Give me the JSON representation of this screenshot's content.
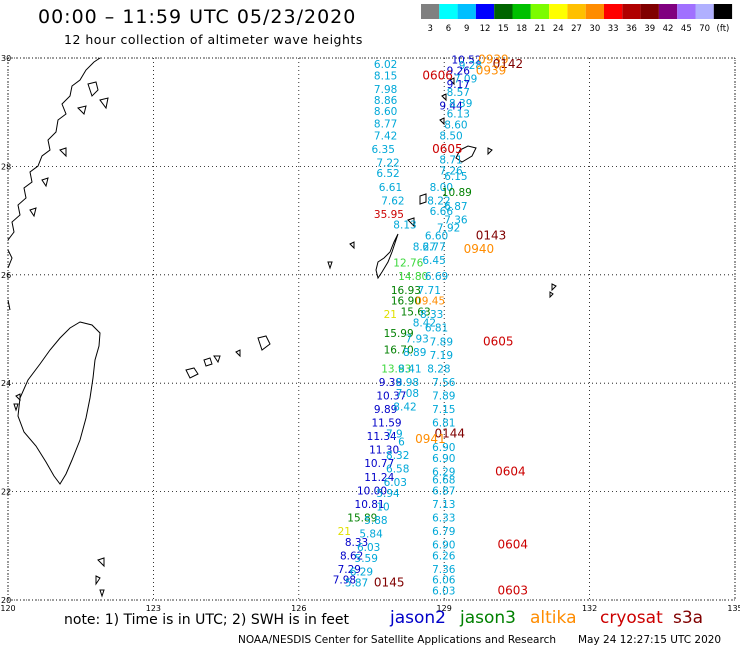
{
  "header": {
    "title": "00:00 – 11:59 UTC 05/23/2020",
    "subtitle": "12 hour collection of altimeter wave heights"
  },
  "colorbar": {
    "colors": [
      "#808080",
      "#00ffff",
      "#00bfff",
      "#0000ff",
      "#006400",
      "#00c000",
      "#7cfc00",
      "#ffff00",
      "#ffc000",
      "#ff8c00",
      "#ff0000",
      "#b00000",
      "#800000",
      "#800080",
      "#a070ff",
      "#b0b0ff",
      "#000000"
    ],
    "labels": [
      "3",
      "6",
      "9",
      "12",
      "15",
      "18",
      "21",
      "24",
      "27",
      "30",
      "33",
      "36",
      "39",
      "42",
      "45",
      "70",
      "(ft)"
    ]
  },
  "axes": {
    "lon_ticks": [
      "120",
      "123",
      "126",
      "129",
      "132",
      "135"
    ],
    "lat_ticks": [
      "30",
      "28",
      "26",
      "24",
      "22",
      "20"
    ]
  },
  "colors": {
    "jason2": "#0000c8",
    "jason3": "#008000",
    "altika": "#ff8c00",
    "cryosat": "#cc0000",
    "s3a": "#800000",
    "cyan": "#00a8d8",
    "lime": "#3cd83c",
    "yellow": "#e0e000"
  },
  "observations": [
    {
      "t": "10.52",
      "lon": 129.15,
      "lat": 29.9,
      "c": "jason2"
    },
    {
      "t": "0939",
      "lon": 129.7,
      "lat": 29.9,
      "c": "altika"
    },
    {
      "t": "0142",
      "lon": 130.0,
      "lat": 29.82,
      "c": "s3a"
    },
    {
      "t": "6.02",
      "lon": 127.55,
      "lat": 29.82,
      "c": "cyan"
    },
    {
      "t": "9.28",
      "lon": 129.3,
      "lat": 29.8,
      "c": "cyan"
    },
    {
      "t": "9.26",
      "lon": 129.05,
      "lat": 29.7,
      "c": "jason2"
    },
    {
      "t": "0939",
      "lon": 129.65,
      "lat": 29.7,
      "c": "altika"
    },
    {
      "t": "8.15",
      "lon": 127.55,
      "lat": 29.6,
      "c": "cyan"
    },
    {
      "t": "0606",
      "lon": 128.55,
      "lat": 29.6,
      "c": "cryosat"
    },
    {
      "t": "7.09",
      "lon": 129.2,
      "lat": 29.55,
      "c": "cyan"
    },
    {
      "t": "9.17",
      "lon": 129.05,
      "lat": 29.45,
      "c": "jason2"
    },
    {
      "t": "7.98",
      "lon": 127.55,
      "lat": 29.35,
      "c": "cyan"
    },
    {
      "t": "8.57",
      "lon": 129.05,
      "lat": 29.3,
      "c": "cyan"
    },
    {
      "t": "8.86",
      "lon": 127.55,
      "lat": 29.15,
      "c": "cyan"
    },
    {
      "t": "9.44",
      "lon": 128.9,
      "lat": 29.05,
      "c": "jason2"
    },
    {
      "t": "8.39",
      "lon": 129.1,
      "lat": 29.1,
      "c": "cyan"
    },
    {
      "t": "8.60",
      "lon": 127.55,
      "lat": 28.95,
      "c": "cyan"
    },
    {
      "t": "6.13",
      "lon": 129.05,
      "lat": 28.9,
      "c": "cyan"
    },
    {
      "t": "8.77",
      "lon": 127.55,
      "lat": 28.72,
      "c": "cyan"
    },
    {
      "t": "8.60",
      "lon": 129.0,
      "lat": 28.7,
      "c": "cyan"
    },
    {
      "t": "7.42",
      "lon": 127.55,
      "lat": 28.5,
      "c": "cyan"
    },
    {
      "t": "8.50",
      "lon": 128.9,
      "lat": 28.5,
      "c": "cyan"
    },
    {
      "t": "6.35",
      "lon": 127.5,
      "lat": 28.25,
      "c": "cyan"
    },
    {
      "t": "0605",
      "lon": 128.75,
      "lat": 28.25,
      "c": "cryosat"
    },
    {
      "t": "8.71",
      "lon": 128.9,
      "lat": 28.05,
      "c": "cyan"
    },
    {
      "t": "7.22",
      "lon": 127.6,
      "lat": 28.0,
      "c": "cyan"
    },
    {
      "t": "7.26",
      "lon": 128.9,
      "lat": 27.85,
      "c": "cyan"
    },
    {
      "t": "6.52",
      "lon": 127.6,
      "lat": 27.8,
      "c": "cyan"
    },
    {
      "t": "6.15",
      "lon": 129.0,
      "lat": 27.75,
      "c": "cyan"
    },
    {
      "t": "6.61",
      "lon": 127.65,
      "lat": 27.55,
      "c": "cyan"
    },
    {
      "t": "8.00",
      "lon": 128.7,
      "lat": 27.55,
      "c": "cyan"
    },
    {
      "t": "10.89",
      "lon": 128.95,
      "lat": 27.45,
      "c": "jason3"
    },
    {
      "t": "7.62",
      "lon": 127.7,
      "lat": 27.3,
      "c": "cyan"
    },
    {
      "t": "8.22",
      "lon": 128.65,
      "lat": 27.3,
      "c": "cyan"
    },
    {
      "t": "6.87",
      "lon": 129.0,
      "lat": 27.2,
      "c": "cyan"
    },
    {
      "t": "6.66",
      "lon": 128.7,
      "lat": 27.1,
      "c": "cyan"
    },
    {
      "t": "35.95",
      "lon": 127.55,
      "lat": 27.05,
      "c": "cryosat"
    },
    {
      "t": "7.36",
      "lon": 129.0,
      "lat": 26.95,
      "c": "cyan"
    },
    {
      "t": "8.13",
      "lon": 127.95,
      "lat": 26.85,
      "c": "cyan"
    },
    {
      "t": "7.92",
      "lon": 128.85,
      "lat": 26.8,
      "c": "cyan"
    },
    {
      "t": "0143",
      "lon": 129.65,
      "lat": 26.65,
      "c": "s3a"
    },
    {
      "t": "6.60",
      "lon": 128.6,
      "lat": 26.65,
      "c": "cyan"
    },
    {
      "t": "8.27",
      "lon": 128.35,
      "lat": 26.45,
      "c": "cyan"
    },
    {
      "t": "6.77",
      "lon": 128.55,
      "lat": 26.45,
      "c": "cyan"
    },
    {
      "t": "0940",
      "lon": 129.4,
      "lat": 26.4,
      "c": "altika"
    },
    {
      "t": "12.76",
      "lon": 127.95,
      "lat": 26.15,
      "c": "lime"
    },
    {
      "t": "6.45",
      "lon": 128.55,
      "lat": 26.2,
      "c": "cyan"
    },
    {
      "t": "14.80",
      "lon": 128.05,
      "lat": 25.9,
      "c": "lime"
    },
    {
      "t": "6.69",
      "lon": 128.6,
      "lat": 25.9,
      "c": "cyan"
    },
    {
      "t": "16.93",
      "lon": 127.9,
      "lat": 25.65,
      "c": "jason3"
    },
    {
      "t": "7.71",
      "lon": 128.45,
      "lat": 25.65,
      "c": "cyan"
    },
    {
      "t": "16.90",
      "lon": 127.9,
      "lat": 25.45,
      "c": "jason3"
    },
    {
      "t": "09.45",
      "lon": 128.4,
      "lat": 25.45,
      "c": "altika"
    },
    {
      "t": "21",
      "lon": 127.75,
      "lat": 25.2,
      "c": "yellow"
    },
    {
      "t": "15.63",
      "lon": 128.1,
      "lat": 25.25,
      "c": "jason3"
    },
    {
      "t": "8.33",
      "lon": 128.5,
      "lat": 25.2,
      "c": "cyan"
    },
    {
      "t": "8.42",
      "lon": 128.35,
      "lat": 25.05,
      "c": "cyan"
    },
    {
      "t": "15.99",
      "lon": 127.75,
      "lat": 24.85,
      "c": "jason3"
    },
    {
      "t": "6.81",
      "lon": 128.6,
      "lat": 24.95,
      "c": "cyan"
    },
    {
      "t": "7.93",
      "lon": 128.2,
      "lat": 24.75,
      "c": "cyan"
    },
    {
      "t": "7.89",
      "lon": 128.7,
      "lat": 24.7,
      "c": "cyan"
    },
    {
      "t": "0605",
      "lon": 129.8,
      "lat": 24.7,
      "c": "cryosat"
    },
    {
      "t": "16.70",
      "lon": 127.75,
      "lat": 24.55,
      "c": "jason3"
    },
    {
      "t": "8.89",
      "lon": 128.15,
      "lat": 24.5,
      "c": "cyan"
    },
    {
      "t": "7.19",
      "lon": 128.7,
      "lat": 24.45,
      "c": "cyan"
    },
    {
      "t": "13.93",
      "lon": 127.7,
      "lat": 24.2,
      "c": "lime"
    },
    {
      "t": "8.41",
      "lon": 128.05,
      "lat": 24.2,
      "c": "cyan"
    },
    {
      "t": "8.28",
      "lon": 128.65,
      "lat": 24.2,
      "c": "cyan"
    },
    {
      "t": "9.39",
      "lon": 127.65,
      "lat": 23.95,
      "c": "jason2"
    },
    {
      "t": "8.98",
      "lon": 128.0,
      "lat": 23.95,
      "c": "cyan"
    },
    {
      "t": "7.56",
      "lon": 128.75,
      "lat": 23.95,
      "c": "cyan"
    },
    {
      "t": "10.37",
      "lon": 127.6,
      "lat": 23.7,
      "c": "jason2"
    },
    {
      "t": "7.08",
      "lon": 128.0,
      "lat": 23.75,
      "c": "cyan"
    },
    {
      "t": "7.89",
      "lon": 128.75,
      "lat": 23.7,
      "c": "cyan"
    },
    {
      "t": "9.89",
      "lon": 127.55,
      "lat": 23.45,
      "c": "jason2"
    },
    {
      "t": "8.42",
      "lon": 127.95,
      "lat": 23.5,
      "c": "cyan"
    },
    {
      "t": "7.15",
      "lon": 128.75,
      "lat": 23.45,
      "c": "cyan"
    },
    {
      "t": "11.59",
      "lon": 127.5,
      "lat": 23.2,
      "c": "jason2"
    },
    {
      "t": "6.81",
      "lon": 128.75,
      "lat": 23.2,
      "c": "cyan"
    },
    {
      "t": "11.34",
      "lon": 127.4,
      "lat": 22.95,
      "c": "jason2"
    },
    {
      "t": "7.9",
      "lon": 127.8,
      "lat": 23.0,
      "c": "cyan"
    },
    {
      "t": "0144",
      "lon": 128.8,
      "lat": 23.0,
      "c": "s3a"
    },
    {
      "t": "0941",
      "lon": 128.4,
      "lat": 22.9,
      "c": "altika"
    },
    {
      "t": "6",
      "lon": 128.05,
      "lat": 22.85,
      "c": "cyan"
    },
    {
      "t": "6.90",
      "lon": 128.75,
      "lat": 22.75,
      "c": "cyan"
    },
    {
      "t": "11.30",
      "lon": 127.45,
      "lat": 22.7,
      "c": "jason2"
    },
    {
      "t": "8.32",
      "lon": 127.8,
      "lat": 22.6,
      "c": "cyan"
    },
    {
      "t": "6.90",
      "lon": 128.75,
      "lat": 22.55,
      "c": "cyan"
    },
    {
      "t": "10.77",
      "lon": 127.35,
      "lat": 22.45,
      "c": "jason2"
    },
    {
      "t": "6.58",
      "lon": 127.8,
      "lat": 22.35,
      "c": "cyan"
    },
    {
      "t": "6.29",
      "lon": 128.75,
      "lat": 22.3,
      "c": "cyan"
    },
    {
      "t": "0604",
      "lon": 130.05,
      "lat": 22.3,
      "c": "cryosat"
    },
    {
      "t": "11.24",
      "lon": 127.35,
      "lat": 22.2,
      "c": "jason2"
    },
    {
      "t": "6.68",
      "lon": 128.75,
      "lat": 22.15,
      "c": "cyan"
    },
    {
      "t": "6.03",
      "lon": 127.75,
      "lat": 22.1,
      "c": "cyan"
    },
    {
      "t": "10.00",
      "lon": 127.2,
      "lat": 21.95,
      "c": "jason2"
    },
    {
      "t": "6.87",
      "lon": 128.75,
      "lat": 21.95,
      "c": "cyan"
    },
    {
      "t": "5.94",
      "lon": 127.6,
      "lat": 21.9,
      "c": "cyan"
    },
    {
      "t": "10.81",
      "lon": 127.15,
      "lat": 21.7,
      "c": "jason2"
    },
    {
      "t": "7.13",
      "lon": 128.75,
      "lat": 21.7,
      "c": "cyan"
    },
    {
      "t": "10",
      "lon": 127.6,
      "lat": 21.65,
      "c": "cyan"
    },
    {
      "t": "15.89",
      "lon": 127.0,
      "lat": 21.45,
      "c": "jason3"
    },
    {
      "t": "6.33",
      "lon": 128.75,
      "lat": 21.45,
      "c": "cyan"
    },
    {
      "t": "5.88",
      "lon": 127.35,
      "lat": 21.4,
      "c": "cyan"
    },
    {
      "t": "21",
      "lon": 126.8,
      "lat": 21.2,
      "c": "yellow"
    },
    {
      "t": "5.84",
      "lon": 127.25,
      "lat": 21.15,
      "c": "cyan"
    },
    {
      "t": "6.79",
      "lon": 128.75,
      "lat": 21.2,
      "c": "cyan"
    },
    {
      "t": "8.33",
      "lon": 126.95,
      "lat": 21.0,
      "c": "jason2"
    },
    {
      "t": "6.90",
      "lon": 128.75,
      "lat": 20.95,
      "c": "cyan"
    },
    {
      "t": "0604",
      "lon": 130.1,
      "lat": 20.95,
      "c": "cryosat"
    },
    {
      "t": "6.03",
      "lon": 127.2,
      "lat": 20.9,
      "c": "cyan"
    },
    {
      "t": "8.62",
      "lon": 126.85,
      "lat": 20.75,
      "c": "jason2"
    },
    {
      "t": "6.26",
      "lon": 128.75,
      "lat": 20.75,
      "c": "cyan"
    },
    {
      "t": "5.59",
      "lon": 127.15,
      "lat": 20.7,
      "c": "cyan"
    },
    {
      "t": "7.29",
      "lon": 126.8,
      "lat": 20.5,
      "c": "jason2"
    },
    {
      "t": "7.36",
      "lon": 128.75,
      "lat": 20.5,
      "c": "cyan"
    },
    {
      "t": "6.29",
      "lon": 127.05,
      "lat": 20.45,
      "c": "cyan"
    },
    {
      "t": "7.98",
      "lon": 126.7,
      "lat": 20.3,
      "c": "jason2"
    },
    {
      "t": "6.06",
      "lon": 128.75,
      "lat": 20.3,
      "c": "cyan"
    },
    {
      "t": "5.87",
      "lon": 126.95,
      "lat": 20.25,
      "c": "cyan"
    },
    {
      "t": "0145",
      "lon": 127.55,
      "lat": 20.25,
      "c": "s3a"
    },
    {
      "t": "6.03",
      "lon": 128.75,
      "lat": 20.1,
      "c": "cyan"
    },
    {
      "t": "0603",
      "lon": 130.1,
      "lat": 20.1,
      "c": "cryosat"
    }
  ],
  "footer": {
    "note": "note: 1) Time is in UTC; 2) SWH is in feet",
    "satellites": [
      {
        "name": "jason2",
        "color": "#0000c8"
      },
      {
        "name": "jason3",
        "color": "#008000"
      },
      {
        "name": "altika",
        "color": "#ff8c00"
      },
      {
        "name": "cryosat",
        "color": "#cc0000"
      },
      {
        "name": "s3a",
        "color": "#800000"
      }
    ],
    "credit": "NOAA/NESDIS Center for Satellite Applications and Research",
    "timestamp": "May 24 12:27:15 UTC 2020"
  }
}
